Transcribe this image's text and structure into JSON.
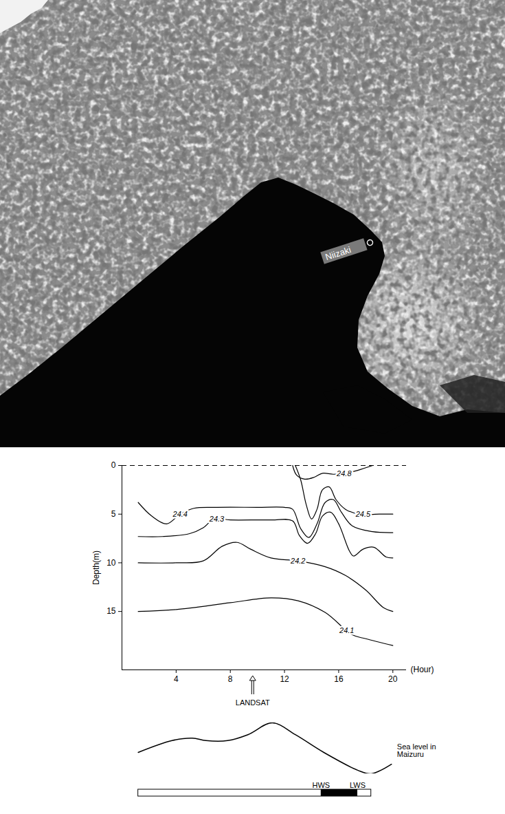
{
  "image": {
    "place_label": "Niizaki"
  },
  "chart_data": {
    "type": "contour",
    "ylabel": "Depth(m)",
    "xlabel": "(Hour)",
    "xlim": [
      0,
      21
    ],
    "xticks": [
      4,
      8,
      12,
      16,
      20
    ],
    "ylim": [
      0,
      21
    ],
    "yticks": [
      0,
      5,
      10,
      15
    ],
    "isotherms": [
      {
        "label": "24.8",
        "label_x": 16.4,
        "x": [
          12.6,
          12.9,
          13.5,
          14.2,
          14.8,
          15.6,
          16.5,
          17.4,
          18.5
        ],
        "y": [
          0,
          1.0,
          1.4,
          1.2,
          0.8,
          0.9,
          0.8,
          0.5,
          0
        ]
      },
      {
        "label": "24.5",
        "label_x": 17.8,
        "x": [
          12.8,
          13.2,
          13.6,
          14.0,
          14.4,
          14.8,
          15.3,
          15.8,
          16.5,
          17.5,
          19,
          20
        ],
        "y": [
          0,
          1.5,
          4.0,
          5.5,
          4.5,
          2.5,
          2.2,
          3.5,
          4.5,
          5.0,
          5.0,
          5.0
        ]
      },
      {
        "label": "24.4",
        "label_x": 4.3,
        "x": [
          1.2,
          2.2,
          3.3,
          4.3,
          5.3,
          7,
          10,
          12,
          12.6,
          13.2,
          13.8,
          14.4,
          15,
          15.6,
          16.2,
          17,
          18.5,
          20
        ],
        "y": [
          3.8,
          5.2,
          6.0,
          5.0,
          4.4,
          4.3,
          4.3,
          4.3,
          4.5,
          6.5,
          7.4,
          6.0,
          3.8,
          3.5,
          4.8,
          6.2,
          6.8,
          6.9
        ]
      },
      {
        "label": "24.3",
        "label_x": 7,
        "x": [
          1.2,
          3,
          5,
          6,
          6.8,
          8,
          11,
          12.6,
          13.1,
          13.7,
          14.3,
          14.8,
          15.4,
          16,
          16.8,
          17.1,
          17.8,
          18.6,
          19.5,
          20
        ],
        "y": [
          7.3,
          7.3,
          7.0,
          6.4,
          5.5,
          5.6,
          5.6,
          5.7,
          7.2,
          8.0,
          7.0,
          5.2,
          4.8,
          6.0,
          8.8,
          9.3,
          8.6,
          8.4,
          9.4,
          9.5
        ]
      },
      {
        "label": "24.2",
        "label_x": 13,
        "x": [
          1.2,
          4,
          6,
          7.4,
          8.5,
          9.5,
          11,
          13,
          15,
          16.5,
          18,
          19.3,
          20
        ],
        "y": [
          10,
          10,
          9.8,
          8.3,
          7.9,
          8.6,
          9.5,
          9.8,
          10.4,
          11.3,
          12.8,
          14.6,
          15
        ]
      },
      {
        "label": "24.1",
        "label_x": 16.6,
        "x": [
          1.2,
          4,
          8,
          11,
          13,
          15,
          17,
          18,
          20
        ],
        "y": [
          15,
          14.8,
          14.1,
          13.6,
          13.9,
          15.1,
          17.4,
          17.8,
          18.5
        ]
      }
    ],
    "annotation": {
      "text": "LANDSAT",
      "x": 9.6
    },
    "sea_level": {
      "label": "Sea level in Maizuru",
      "x": [
        1.2,
        3.7,
        5.2,
        6.2,
        7.8,
        9.3,
        11.1,
        12.8,
        14.9,
        17.4,
        18.4,
        19.9
      ],
      "values": [
        20,
        30,
        32,
        30,
        30,
        35,
        45,
        35,
        20,
        5,
        2,
        10
      ]
    },
    "tide": {
      "x": [
        1.2,
        18.4
      ],
      "slack": [
        {
          "label": "HWS",
          "x": 14.7
        },
        {
          "label": "LWS",
          "x": 17.4
        }
      ]
    }
  }
}
